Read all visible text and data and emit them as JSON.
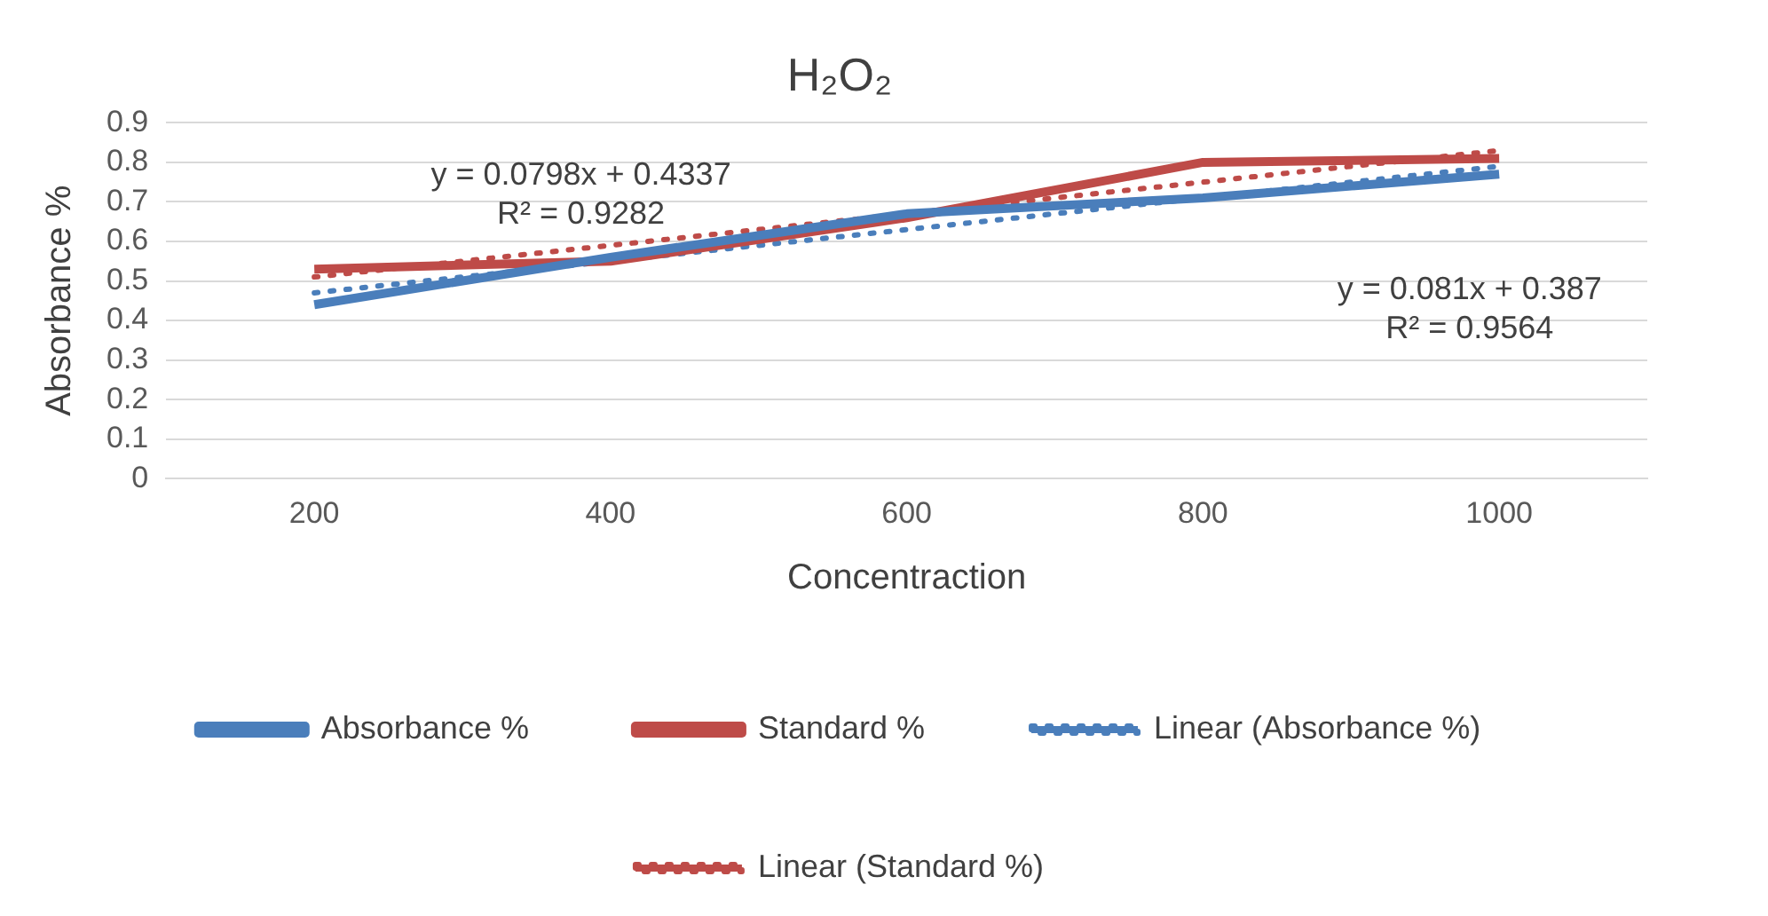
{
  "chart_data": {
    "type": "line",
    "title": "H₂O₂",
    "xlabel": "Concentraction",
    "ylabel": "Absorbance %",
    "categories": [
      "200",
      "400",
      "600",
      "800",
      "1000"
    ],
    "series": [
      {
        "name": "Absorbance %",
        "color": "#4a7ebb",
        "values": [
          0.44,
          0.56,
          0.67,
          0.71,
          0.77
        ]
      },
      {
        "name": "Standard %",
        "color": "#be4b48",
        "values": [
          0.53,
          0.55,
          0.66,
          0.8,
          0.81
        ]
      },
      {
        "name": "Linear (Absorbance %)",
        "color": "#4a7ebb",
        "line_style": "dotted",
        "values": [
          0.47,
          0.55,
          0.63,
          0.71,
          0.79
        ]
      },
      {
        "name": "Linear (Standard %)",
        "color": "#be4b48",
        "line_style": "dotted",
        "values": [
          0.51,
          0.59,
          0.67,
          0.75,
          0.83
        ]
      }
    ],
    "ylim": [
      0,
      0.9
    ],
    "yticks": [
      0,
      0.1,
      0.2,
      0.3,
      0.4,
      0.5,
      0.6,
      0.7,
      0.8,
      0.9
    ],
    "annotations": [
      "y = 0.0798x + 0.4337\nR² = 0.9282",
      "y = 0.081x + 0.387\nR² = 0.9564"
    ],
    "grid": "y",
    "legend": "bottom",
    "marker": "none",
    "line_style": "solid"
  }
}
